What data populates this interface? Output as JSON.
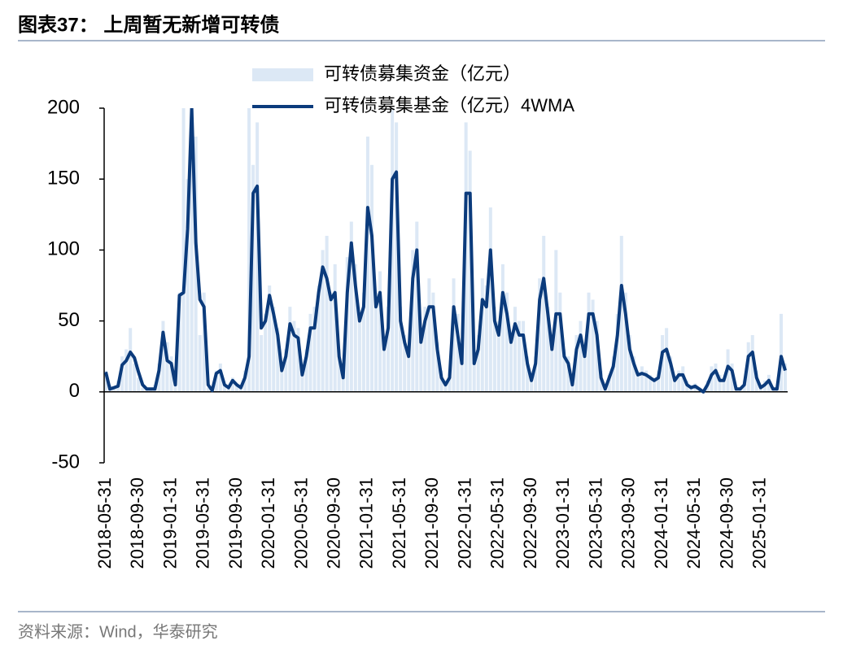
{
  "title": "图表37： 上周暂无新增可转债",
  "source": "资料来源：Wind，华泰研究",
  "chart_data": {
    "type": "bar-line",
    "categories": [
      "2018-05-31",
      null,
      null,
      null,
      null,
      null,
      null,
      null,
      "2018-09-30",
      null,
      null,
      null,
      null,
      null,
      null,
      null,
      "2019-01-31",
      null,
      null,
      null,
      null,
      null,
      null,
      null,
      "2019-05-31",
      null,
      null,
      null,
      null,
      null,
      null,
      null,
      "2019-09-30",
      null,
      null,
      null,
      null,
      null,
      null,
      null,
      "2020-01-31",
      null,
      null,
      null,
      null,
      null,
      null,
      null,
      "2020-05-31",
      null,
      null,
      null,
      null,
      null,
      null,
      null,
      "2020-09-30",
      null,
      null,
      null,
      null,
      null,
      null,
      null,
      "2021-01-31",
      null,
      null,
      null,
      null,
      null,
      null,
      null,
      "2021-05-31",
      null,
      null,
      null,
      null,
      null,
      null,
      null,
      "2021-09-30",
      null,
      null,
      null,
      null,
      null,
      null,
      null,
      "2022-01-31",
      null,
      null,
      null,
      null,
      null,
      null,
      null,
      "2022-05-31",
      null,
      null,
      null,
      null,
      null,
      null,
      null,
      "2022-09-30",
      null,
      null,
      null,
      null,
      null,
      null,
      null,
      "2023-01-31",
      null,
      null,
      null,
      null,
      null,
      null,
      null,
      "2023-05-31",
      null,
      null,
      null,
      null,
      null,
      null,
      null,
      "2023-09-30",
      null,
      null,
      null,
      null,
      null,
      null,
      null,
      "2024-01-31",
      null,
      null,
      null,
      null,
      null,
      null,
      null,
      "2024-05-31",
      null,
      null,
      null,
      null,
      null,
      null,
      null,
      "2024-09-30",
      null,
      null,
      null,
      null,
      null,
      null,
      null,
      "2025-01-31",
      null,
      null,
      null,
      null,
      null,
      null
    ],
    "series": [
      {
        "name": "可转债募集资金（亿元）",
        "type": "bar",
        "color": "#dce8f5",
        "values": [
          15,
          5,
          3,
          8,
          25,
          30,
          45,
          20,
          10,
          3,
          2,
          2,
          5,
          20,
          50,
          35,
          25,
          5,
          70,
          200,
          150,
          200,
          180,
          40,
          70,
          3,
          2,
          15,
          20,
          5,
          3,
          10,
          5,
          5,
          15,
          200,
          160,
          190,
          40,
          55,
          75,
          60,
          45,
          20,
          30,
          60,
          50,
          45,
          15,
          30,
          55,
          60,
          75,
          100,
          110,
          70,
          90,
          30,
          15,
          95,
          120,
          90,
          55,
          70,
          180,
          160,
          70,
          85,
          35,
          60,
          200,
          190,
          60,
          40,
          30,
          100,
          120,
          40,
          60,
          80,
          70,
          35,
          15,
          8,
          15,
          80,
          55,
          25,
          190,
          170,
          30,
          40,
          80,
          75,
          130,
          60,
          50,
          90,
          70,
          40,
          60,
          50,
          50,
          25,
          10,
          25,
          80,
          110,
          60,
          40,
          100,
          70,
          30,
          25,
          8,
          40,
          50,
          30,
          70,
          65,
          50,
          15,
          3,
          12,
          25,
          55,
          110,
          70,
          40,
          25,
          15,
          18,
          15,
          12,
          10,
          15,
          40,
          45,
          25,
          10,
          15,
          18,
          8,
          5,
          6,
          3,
          1,
          8,
          18,
          20,
          12,
          10,
          30,
          20,
          3,
          3,
          8,
          35,
          40,
          15,
          5,
          8,
          12,
          3,
          3,
          55,
          20
        ]
      },
      {
        "name": "可转债募集基金（亿元）4WMA",
        "type": "line",
        "color": "#0b3b7c",
        "values": [
          14,
          2,
          3,
          4,
          19,
          22,
          28,
          24,
          14,
          5,
          2,
          2,
          2,
          15,
          42,
          22,
          20,
          5,
          68,
          70,
          115,
          200,
          105,
          65,
          60,
          5,
          1,
          13,
          15,
          5,
          3,
          8,
          5,
          3,
          10,
          25,
          140,
          145,
          45,
          50,
          68,
          55,
          40,
          15,
          25,
          48,
          40,
          38,
          12,
          25,
          45,
          45,
          70,
          88,
          80,
          65,
          70,
          25,
          10,
          70,
          105,
          75,
          50,
          60,
          130,
          110,
          60,
          70,
          30,
          45,
          150,
          155,
          50,
          35,
          25,
          80,
          100,
          35,
          50,
          60,
          60,
          30,
          10,
          5,
          10,
          60,
          40,
          20,
          140,
          140,
          20,
          30,
          65,
          60,
          100,
          50,
          40,
          70,
          55,
          35,
          48,
          40,
          40,
          20,
          8,
          20,
          65,
          80,
          55,
          30,
          55,
          55,
          25,
          20,
          5,
          30,
          40,
          25,
          55,
          55,
          40,
          10,
          2,
          10,
          18,
          40,
          75,
          55,
          30,
          20,
          12,
          13,
          12,
          10,
          8,
          10,
          28,
          30,
          20,
          8,
          12,
          12,
          5,
          3,
          4,
          2,
          0,
          5,
          12,
          15,
          8,
          8,
          18,
          15,
          2,
          2,
          5,
          25,
          28,
          10,
          3,
          5,
          8,
          2,
          2,
          25,
          15
        ]
      }
    ],
    "ylim": [
      -50,
      200
    ],
    "yticks": [
      -50,
      0,
      50,
      100,
      150,
      200
    ]
  }
}
